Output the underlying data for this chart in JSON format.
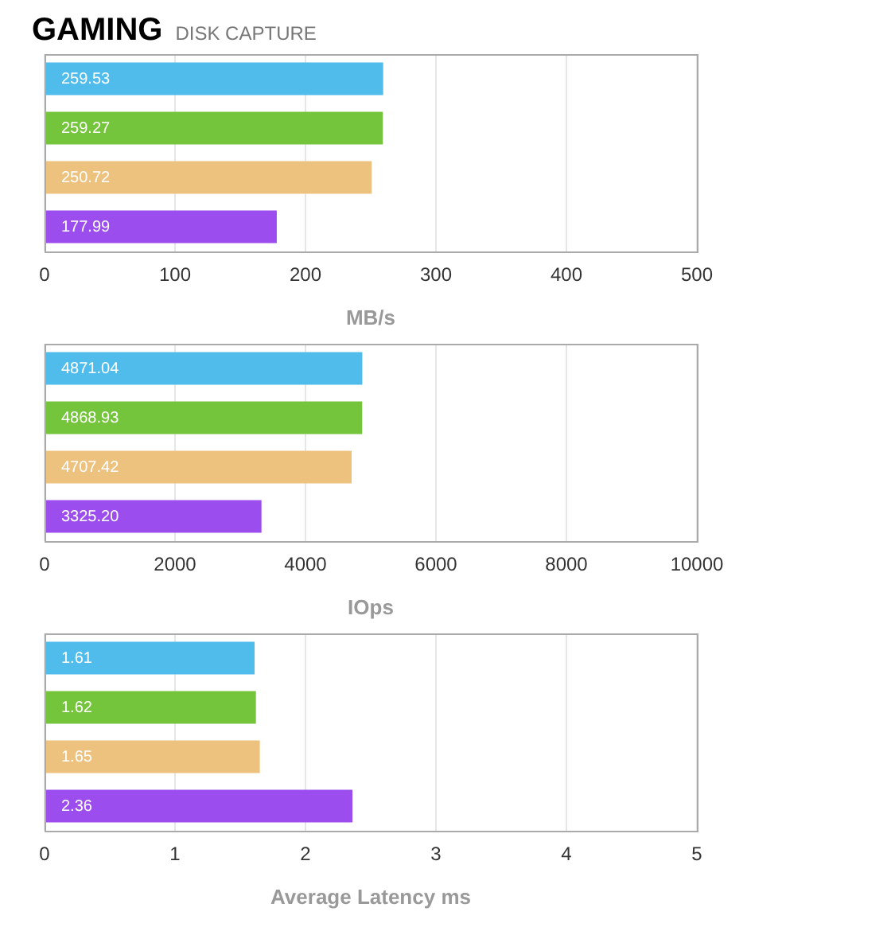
{
  "chart_data": [
    {
      "type": "bar",
      "title": "GAMING",
      "subtitle": "DISK CAPTURE",
      "orientation": "horizontal",
      "categories": [
        null,
        null,
        null,
        null
      ],
      "values": [
        259.53,
        259.27,
        250.72,
        177.99
      ],
      "colors": [
        "#4fbcec",
        "#74c43c",
        "#edc27e",
        "#9b4ded"
      ],
      "xlabel": "MB/s",
      "xlim": [
        0,
        500
      ],
      "xticks": [
        0,
        100,
        200,
        300,
        400,
        500
      ],
      "grid": "x",
      "data_labels": true,
      "tick_labels": "x"
    },
    {
      "type": "bar",
      "orientation": "horizontal",
      "categories": [
        null,
        null,
        null,
        null
      ],
      "values": [
        4871.04,
        4868.93,
        4707.42,
        3325.2
      ],
      "colors": [
        "#4fbcec",
        "#74c43c",
        "#edc27e",
        "#9b4ded"
      ],
      "value_labels": [
        "4871.04",
        "4868.93",
        "4707.42",
        "3325.20"
      ],
      "xlabel": "IOps",
      "xlim": [
        0,
        10000
      ],
      "xticks": [
        0,
        2000,
        4000,
        6000,
        8000,
        10000
      ],
      "grid": "x",
      "tick_labels": "x"
    },
    {
      "type": "bar",
      "orientation": "horizontal",
      "categories": [
        null,
        null,
        null,
        null
      ],
      "values": [
        1.61,
        1.62,
        1.65,
        2.36
      ],
      "colors": [
        "#4fbcec",
        "#74c43c",
        "#edc27e",
        "#9b4ded"
      ],
      "xlabel": "Average Latency ms",
      "xlim": [
        0,
        5
      ],
      "xticks": [
        0,
        1,
        2,
        3,
        4,
        5
      ],
      "grid": "x",
      "data_labels": true,
      "tick_labels": "x"
    }
  ]
}
